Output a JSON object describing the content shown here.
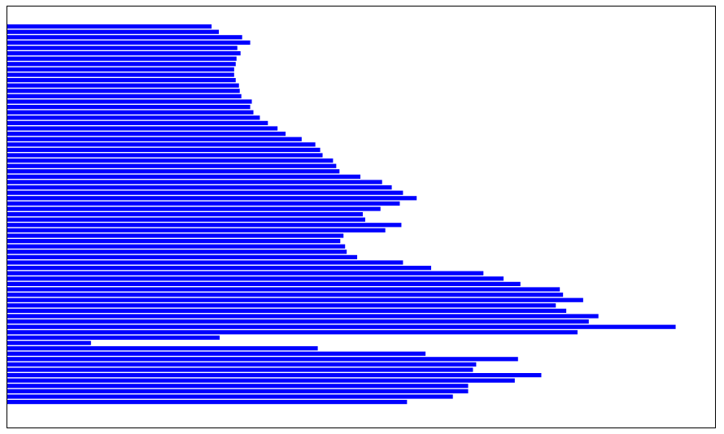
{
  "chart_data": {
    "type": "bar",
    "orientation": "horizontal",
    "title": "",
    "xlabel": "",
    "ylabel": "",
    "grid": false,
    "axes_ticks_shown": false,
    "bar_color": "#0000ff",
    "xlim": [
      0,
      880
    ],
    "values": [
      254,
      263,
      292,
      302,
      286,
      290,
      285,
      284,
      282,
      282,
      284,
      288,
      289,
      291,
      304,
      302,
      306,
      314,
      324,
      336,
      346,
      366,
      383,
      389,
      392,
      405,
      409,
      413,
      439,
      466,
      478,
      492,
      509,
      488,
      464,
      442,
      445,
      490,
      470,
      418,
      414,
      420,
      422,
      435,
      492,
      527,
      592,
      617,
      638,
      687,
      691,
      716,
      682,
      695,
      735,
      723,
      831,
      709,
      264,
      104,
      386,
      520,
      635,
      583,
      579,
      664,
      631,
      573,
      573,
      554,
      497
    ]
  }
}
